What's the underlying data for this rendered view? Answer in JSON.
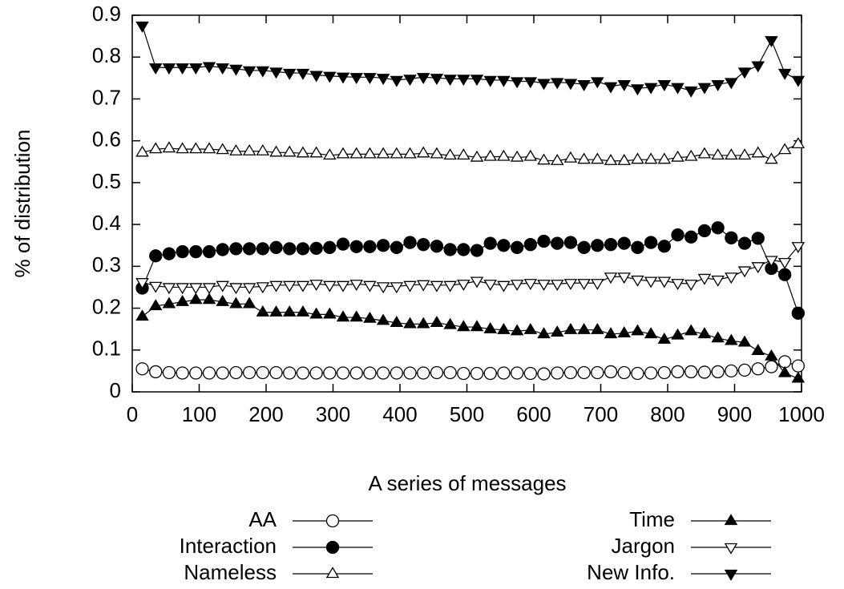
{
  "chart_data": {
    "type": "line",
    "xlabel": "A series of messages",
    "ylabel": "% of distribution",
    "x": [
      15,
      35,
      55,
      75,
      95,
      115,
      135,
      155,
      175,
      195,
      215,
      235,
      255,
      275,
      295,
      315,
      335,
      355,
      375,
      395,
      415,
      435,
      455,
      475,
      495,
      515,
      535,
      555,
      575,
      595,
      615,
      635,
      655,
      675,
      695,
      715,
      735,
      755,
      775,
      795,
      815,
      835,
      855,
      875,
      895,
      915,
      935,
      955,
      975,
      995
    ],
    "xlim": [
      0,
      1000
    ],
    "xticks": [
      0,
      100,
      200,
      300,
      400,
      500,
      600,
      700,
      800,
      900,
      1000
    ],
    "ylim": [
      0,
      0.9
    ],
    "yticks": [
      0,
      0.1,
      0.2,
      0.3,
      0.4,
      0.5,
      0.6,
      0.7,
      0.8,
      0.9
    ],
    "series": [
      {
        "name": "AA",
        "color": "#000000",
        "marker": "circle",
        "filled": false,
        "values": [
          0.055,
          0.048,
          0.046,
          0.045,
          0.045,
          0.045,
          0.045,
          0.046,
          0.046,
          0.046,
          0.046,
          0.045,
          0.045,
          0.045,
          0.045,
          0.045,
          0.045,
          0.045,
          0.045,
          0.045,
          0.045,
          0.045,
          0.046,
          0.046,
          0.044,
          0.044,
          0.044,
          0.045,
          0.045,
          0.044,
          0.043,
          0.045,
          0.046,
          0.046,
          0.046,
          0.048,
          0.046,
          0.044,
          0.045,
          0.046,
          0.048,
          0.048,
          0.047,
          0.048,
          0.05,
          0.052,
          0.055,
          0.06,
          0.072,
          0.062
        ]
      },
      {
        "name": "Interaction",
        "color": "#000000",
        "marker": "circle",
        "filled": true,
        "values": [
          0.248,
          0.325,
          0.33,
          0.335,
          0.335,
          0.335,
          0.34,
          0.342,
          0.342,
          0.342,
          0.345,
          0.342,
          0.342,
          0.343,
          0.345,
          0.353,
          0.347,
          0.347,
          0.35,
          0.345,
          0.357,
          0.352,
          0.348,
          0.34,
          0.34,
          0.338,
          0.355,
          0.35,
          0.345,
          0.352,
          0.36,
          0.355,
          0.357,
          0.345,
          0.35,
          0.352,
          0.355,
          0.345,
          0.357,
          0.348,
          0.375,
          0.37,
          0.385,
          0.392,
          0.368,
          0.355,
          0.367,
          0.295,
          0.28,
          0.188
        ]
      },
      {
        "name": "Nameless",
        "color": "#000000",
        "marker": "triangle-up",
        "filled": false,
        "values": [
          0.572,
          0.58,
          0.582,
          0.58,
          0.58,
          0.58,
          0.578,
          0.575,
          0.575,
          0.575,
          0.572,
          0.572,
          0.57,
          0.57,
          0.565,
          0.568,
          0.568,
          0.568,
          0.568,
          0.568,
          0.568,
          0.57,
          0.568,
          0.565,
          0.565,
          0.56,
          0.562,
          0.562,
          0.56,
          0.562,
          0.553,
          0.552,
          0.558,
          0.555,
          0.555,
          0.552,
          0.552,
          0.555,
          0.555,
          0.555,
          0.56,
          0.562,
          0.568,
          0.565,
          0.565,
          0.565,
          0.57,
          0.555,
          0.578,
          0.592
        ]
      },
      {
        "name": "Time",
        "color": "#000000",
        "marker": "triangle-up",
        "filled": true,
        "values": [
          0.18,
          0.205,
          0.21,
          0.215,
          0.22,
          0.22,
          0.215,
          0.21,
          0.21,
          0.19,
          0.19,
          0.19,
          0.19,
          0.185,
          0.185,
          0.178,
          0.178,
          0.175,
          0.17,
          0.165,
          0.162,
          0.162,
          0.165,
          0.16,
          0.155,
          0.155,
          0.15,
          0.148,
          0.145,
          0.148,
          0.138,
          0.142,
          0.148,
          0.148,
          0.148,
          0.138,
          0.14,
          0.145,
          0.138,
          0.125,
          0.135,
          0.145,
          0.138,
          0.128,
          0.122,
          0.118,
          0.098,
          0.085,
          0.045,
          0.032
        ]
      },
      {
        "name": "Jargon",
        "color": "#000000",
        "marker": "triangle-down",
        "filled": false,
        "values": [
          0.262,
          0.253,
          0.25,
          0.25,
          0.25,
          0.25,
          0.255,
          0.25,
          0.25,
          0.252,
          0.255,
          0.255,
          0.255,
          0.258,
          0.255,
          0.255,
          0.258,
          0.255,
          0.252,
          0.252,
          0.255,
          0.257,
          0.255,
          0.255,
          0.258,
          0.265,
          0.258,
          0.255,
          0.258,
          0.26,
          0.258,
          0.258,
          0.26,
          0.26,
          0.26,
          0.275,
          0.275,
          0.268,
          0.265,
          0.265,
          0.26,
          0.258,
          0.272,
          0.268,
          0.275,
          0.29,
          0.3,
          0.315,
          0.31,
          0.348
        ]
      },
      {
        "name": "New Info.",
        "color": "#000000",
        "marker": "triangle-down",
        "filled": true,
        "values": [
          0.875,
          0.775,
          0.775,
          0.775,
          0.775,
          0.778,
          0.775,
          0.772,
          0.768,
          0.768,
          0.765,
          0.762,
          0.762,
          0.757,
          0.755,
          0.753,
          0.752,
          0.752,
          0.75,
          0.745,
          0.748,
          0.752,
          0.75,
          0.748,
          0.748,
          0.748,
          0.745,
          0.745,
          0.742,
          0.742,
          0.738,
          0.74,
          0.738,
          0.735,
          0.742,
          0.73,
          0.735,
          0.725,
          0.728,
          0.735,
          0.728,
          0.72,
          0.728,
          0.735,
          0.74,
          0.765,
          0.78,
          0.84,
          0.762,
          0.745
        ]
      }
    ]
  }
}
